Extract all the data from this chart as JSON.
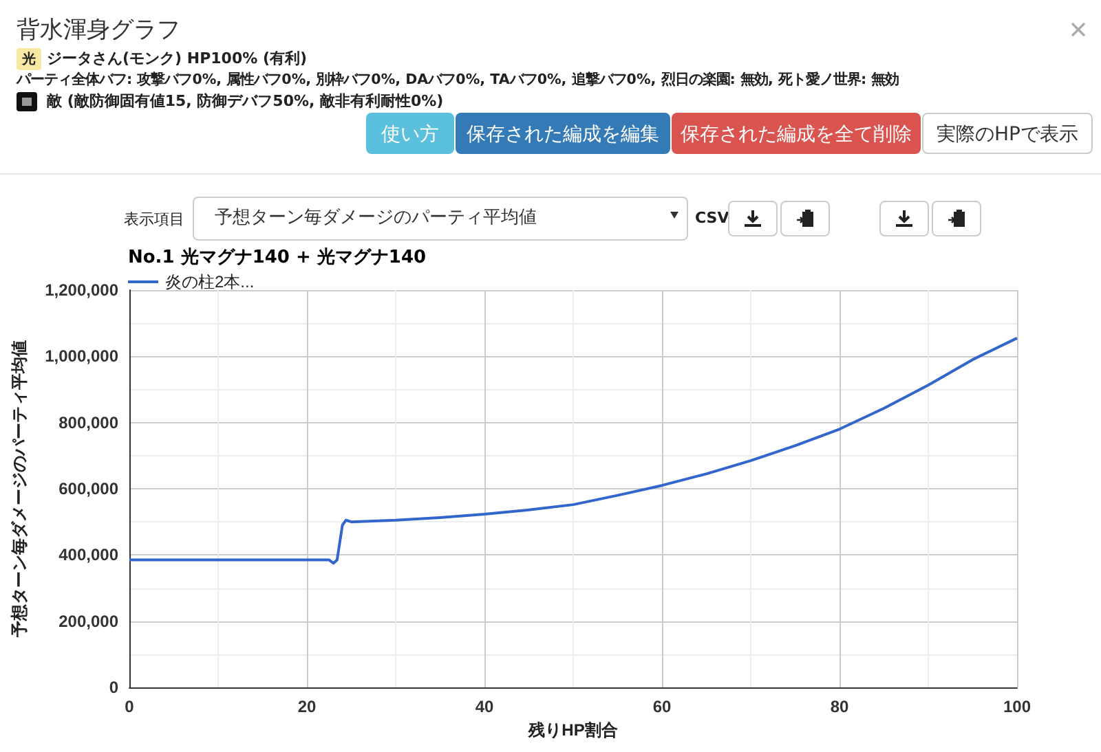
{
  "chart_data": {
    "type": "line",
    "title": "No.1 光マグナ140 + 光マグナ140",
    "xlabel": "残りHP割合",
    "ylabel": "予想ターン毎ダメージのパーティ平均値",
    "annotations": [
      "背水渾身グラフ",
      "光",
      "ジータさん(モンク) HP100% (有利)",
      "パーティ全体バフ: 攻撃バフ0%, 属性バフ0%, 別枠バフ0%, DAバフ0%, TAバフ0%, 追撃バフ0%, 烈日の楽園: 無効, 死ト愛ノ世界: 無効",
      "敵 (敵防御固有値15, 防御デバフ50%, 敵非有利耐性0%)",
      "使い方",
      "保存された編成を編集",
      "保存された編成を全て削除",
      "実際のHPで表示",
      "表示項目",
      "予想ターン毎ダメージのパーティ平均値",
      "CSV"
    ],
    "series": [
      {
        "name": "炎の柱2本...",
        "color": "#3366cc",
        "x": [
          0,
          10,
          20,
          22.5,
          23,
          23.4,
          24,
          24.4,
          25,
          30,
          35,
          40,
          45,
          50,
          55,
          60,
          65,
          70,
          75,
          80,
          85,
          90,
          95,
          100
        ],
        "values": [
          385000,
          385000,
          385000,
          385000,
          375000,
          385000,
          490000,
          505000,
          500000,
          505000,
          513000,
          523000,
          536000,
          552000,
          580000,
          610000,
          645000,
          685000,
          730000,
          780000,
          843000,
          913000,
          990000,
          1055000
        ]
      }
    ],
    "xlim": [
      0,
      100
    ],
    "xticks": [
      0,
      20,
      40,
      60,
      80,
      100
    ],
    "ylim": [
      0,
      1200000
    ],
    "yticks": [
      0,
      {
        "value": 200000,
        "label": "200,000"
      },
      {
        "value": 400000,
        "label": "400,000"
      },
      {
        "value": 600000,
        "label": "600,000"
      },
      {
        "value": 800000,
        "label": "800,000"
      },
      {
        "value": 1000000,
        "label": "1,000,000"
      },
      {
        "value": 1200000,
        "label": "1,200,000"
      }
    ],
    "grid": true,
    "legend": "top left",
    "marker": "none",
    "line_style": "solid"
  }
}
